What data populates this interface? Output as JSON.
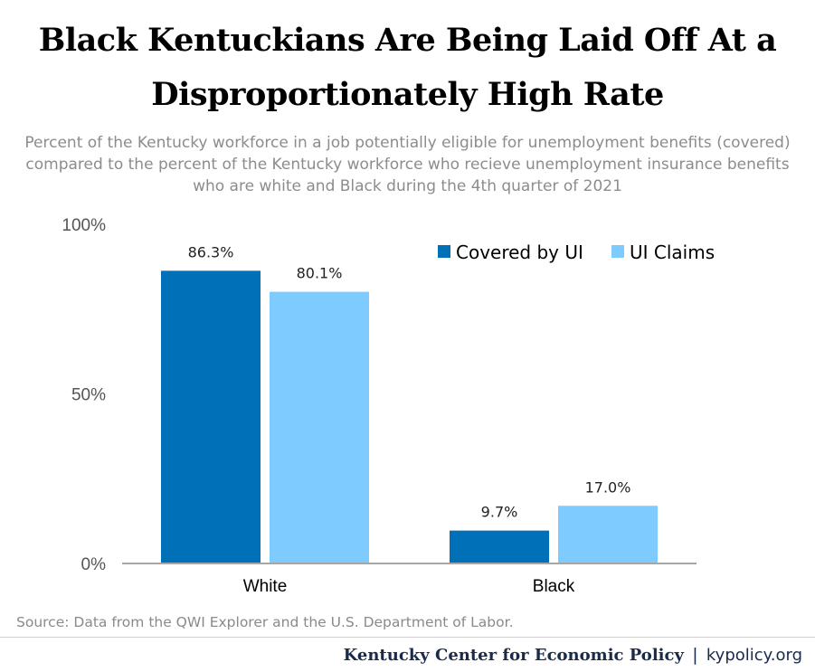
{
  "title_line1": "Black Kentuckians Are Being Laid Off At a",
  "title_line2": "Disproportionately High Rate",
  "subtitle_line1": "Percent of the Kentucky workforce in a job potentially eligible for unemployment benefits (covered)",
  "subtitle_line2": "compared to the percent of the Kentucky workforce who recieve unemployment insurance benefits",
  "subtitle_line3": "who are white and Black during the 4th quarter of 2021",
  "source": "Source: Data from the QWI Explorer and the U.S. Department of Labor.",
  "footer": {
    "org": "Kentucky Center for Economic Policy",
    "separator": "|",
    "url": "kypolicy.org"
  },
  "chart_data": {
    "type": "bar",
    "categories": [
      "White",
      "Black"
    ],
    "series": [
      {
        "name": "Covered by UI",
        "values": [
          86.3,
          9.7
        ],
        "labels": [
          "86.3%",
          "9.7%"
        ],
        "color": "#0070b8"
      },
      {
        "name": "UI Claims",
        "values": [
          80.1,
          17.0
        ],
        "labels": [
          "80.1%",
          "17.0%"
        ],
        "color": "#7dcbff"
      }
    ],
    "yticks": [
      "0%",
      "50%",
      "100%"
    ],
    "ytick_values": [
      0,
      50,
      100
    ],
    "ylim": [
      0,
      100
    ],
    "grid": false,
    "legend_position": "top-right"
  }
}
